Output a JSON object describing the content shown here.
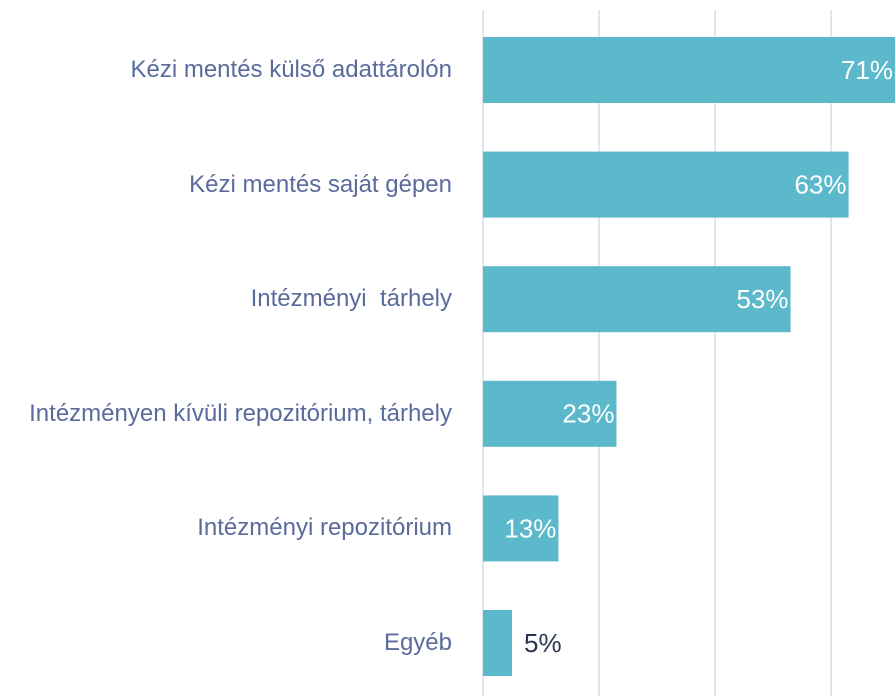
{
  "chart_data": {
    "type": "barh",
    "categories": [
      "Kézi mentés külső adattárolón",
      "Kézi mentés saját gépen",
      "Intézményi  tárhely",
      "Intézményen kívüli repozitórium, tárhely",
      "Intézményi repozitórium",
      "Egyéb"
    ],
    "values": [
      71,
      63,
      53,
      23,
      13,
      5
    ],
    "value_labels": [
      "71%",
      "63%",
      "53%",
      "23%",
      "13%",
      "5%"
    ],
    "color": "#5bb9cb",
    "xlim": [
      0,
      71
    ],
    "xticks": [
      0,
      20,
      40,
      60
    ],
    "grid": true
  }
}
